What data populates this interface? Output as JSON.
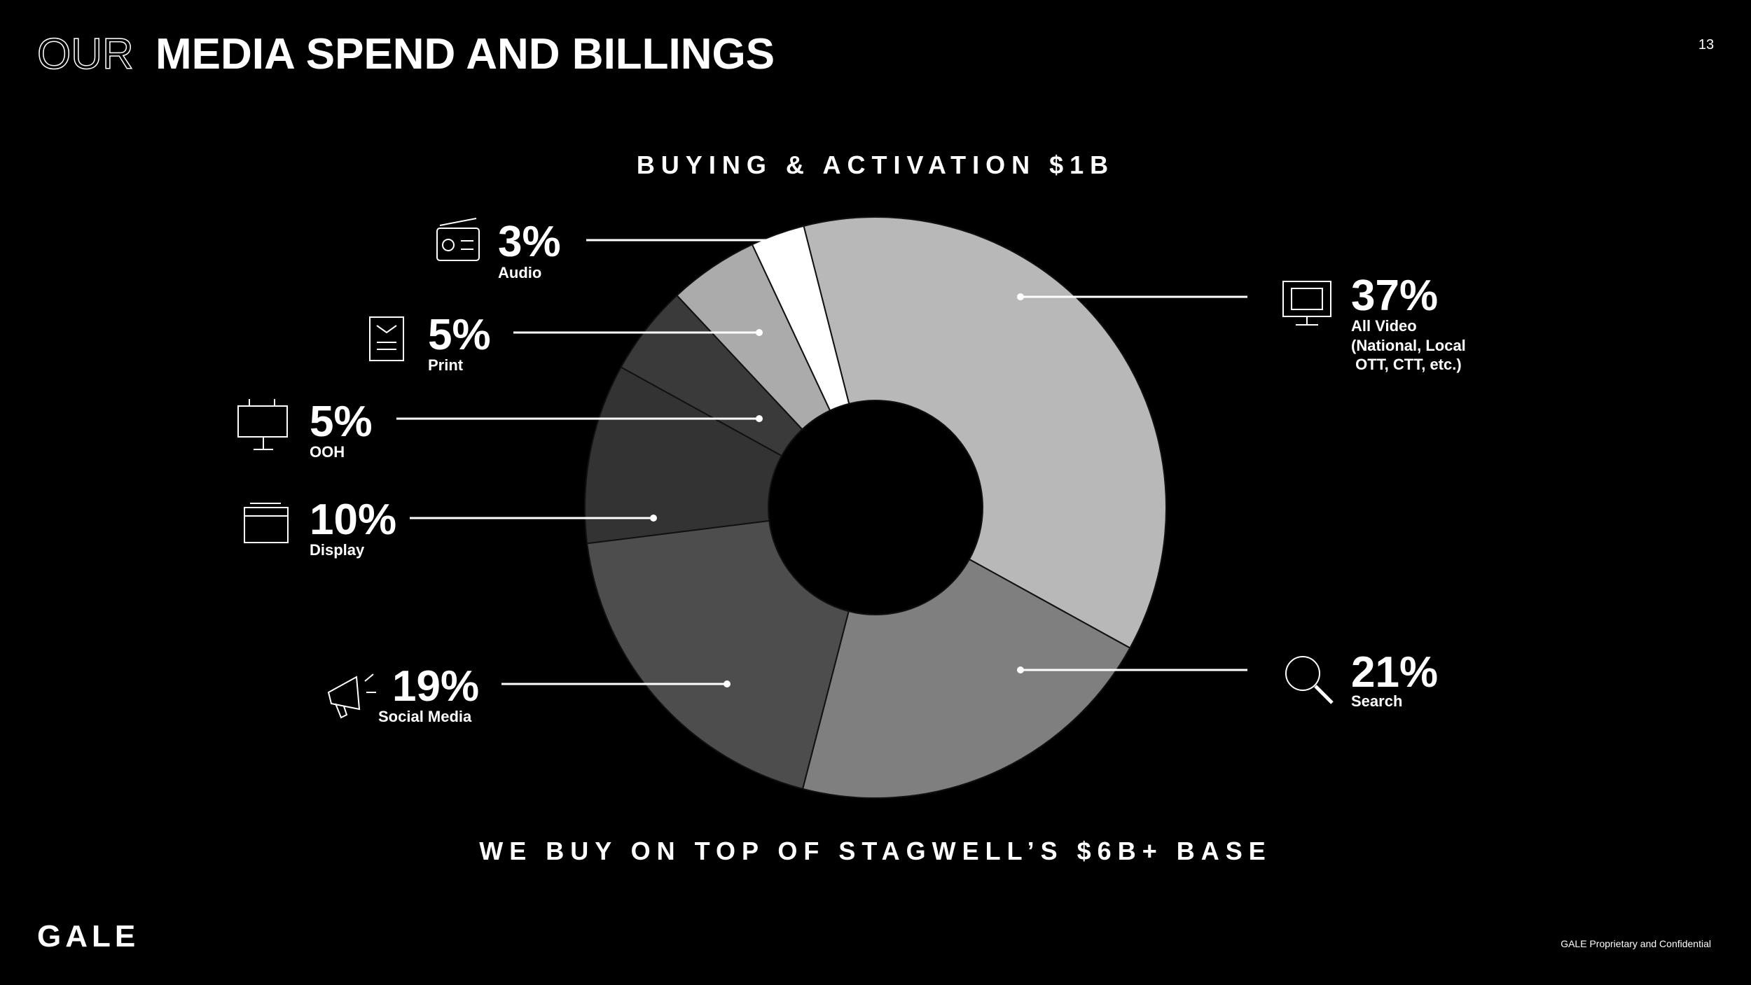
{
  "header": {
    "title_light": "OUR",
    "title_bold": "MEDIA SPEND AND BILLINGS",
    "page_number": "13"
  },
  "chart_data": {
    "type": "pie",
    "title": "BUYING & ACTIVATION $1B",
    "annotation": "WE BUY ON TOP OF STAGWELL’S $6B+ BASE",
    "categories": [
      "All Video\n(National, Local\n OTT, CTT, etc.)",
      "Search",
      "Social Media",
      "Display",
      "OOH",
      "Print",
      "Audio"
    ],
    "values": [
      37,
      21,
      19,
      10,
      5,
      5,
      3
    ],
    "value_labels": [
      "37%",
      "21%",
      "19%",
      "10%",
      "5%",
      "5%",
      "3%"
    ],
    "colors": [
      "#b8b8b8",
      "#7f7f7f",
      "#4d4d4d",
      "#333333",
      "#3a3a3a",
      "#ababab",
      "#ffffff"
    ],
    "donut": true
  },
  "footer": {
    "logo": "GALE",
    "confidential": "GALE Proprietary and Confidential"
  }
}
